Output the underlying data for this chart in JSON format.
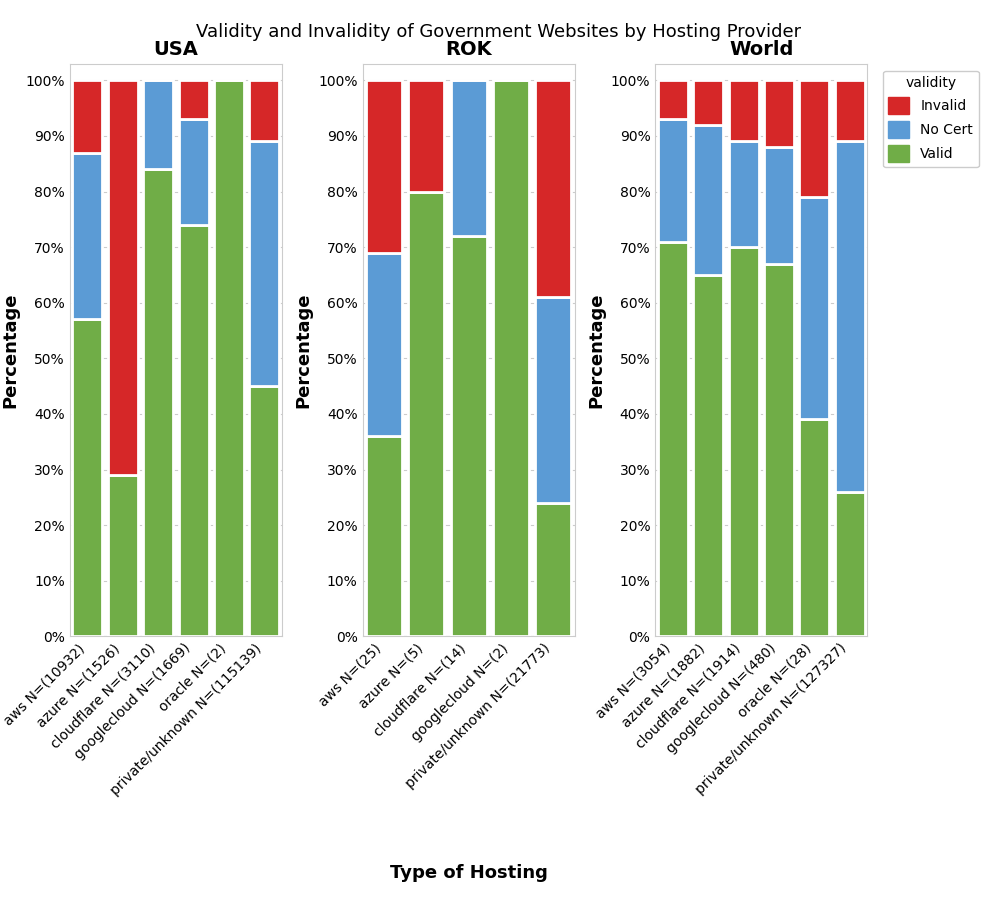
{
  "title": "Validity and Invalidity of Government Websites by Hosting Provider",
  "xlabel": "Type of Hosting",
  "ylabel": "Percentage",
  "colors": {
    "Invalid": "#d62728",
    "No Cert": "#5b9bd5",
    "Valid": "#70ad47"
  },
  "panels": [
    {
      "label": "USA",
      "categories": [
        "aws N=(10932)",
        "azure N=(1526)",
        "cloudflare N=(3110)",
        "googlecloud N=(1669)",
        "oracle N=(2)",
        "private/unknown N=(115139)"
      ],
      "Valid": [
        57,
        29,
        84,
        74,
        100,
        45
      ],
      "No Cert": [
        30,
        0,
        16,
        19,
        0,
        44
      ],
      "Invalid": [
        13,
        71,
        0,
        7,
        0,
        11
      ]
    },
    {
      "label": "ROK",
      "categories": [
        "aws N=(25)",
        "azure N=(5)",
        "cloudflare N=(14)",
        "googlecloud N=(2)",
        "private/unknown N=(21773)"
      ],
      "Valid": [
        36,
        80,
        72,
        100,
        24
      ],
      "No Cert": [
        33,
        0,
        28,
        0,
        37
      ],
      "Invalid": [
        31,
        20,
        0,
        0,
        39
      ]
    },
    {
      "label": "World",
      "categories": [
        "aws N=(3054)",
        "azure N=(1882)",
        "cloudflare N=(1914)",
        "googlecloud N=(480)",
        "oracle N=(28)",
        "private/unknown N=(127327)"
      ],
      "Valid": [
        71,
        65,
        70,
        67,
        39,
        26
      ],
      "No Cert": [
        22,
        27,
        19,
        21,
        40,
        63
      ],
      "Invalid": [
        7,
        8,
        11,
        12,
        21,
        11
      ]
    }
  ],
  "legend_title": "validity",
  "background_color": "#ffffff",
  "plot_bg_color": "#ffffff",
  "grid_color": "#cccccc",
  "title_fontsize": 13,
  "subtitle_fontsize": 14,
  "axis_label_fontsize": 13,
  "tick_fontsize": 10,
  "legend_fontsize": 10
}
